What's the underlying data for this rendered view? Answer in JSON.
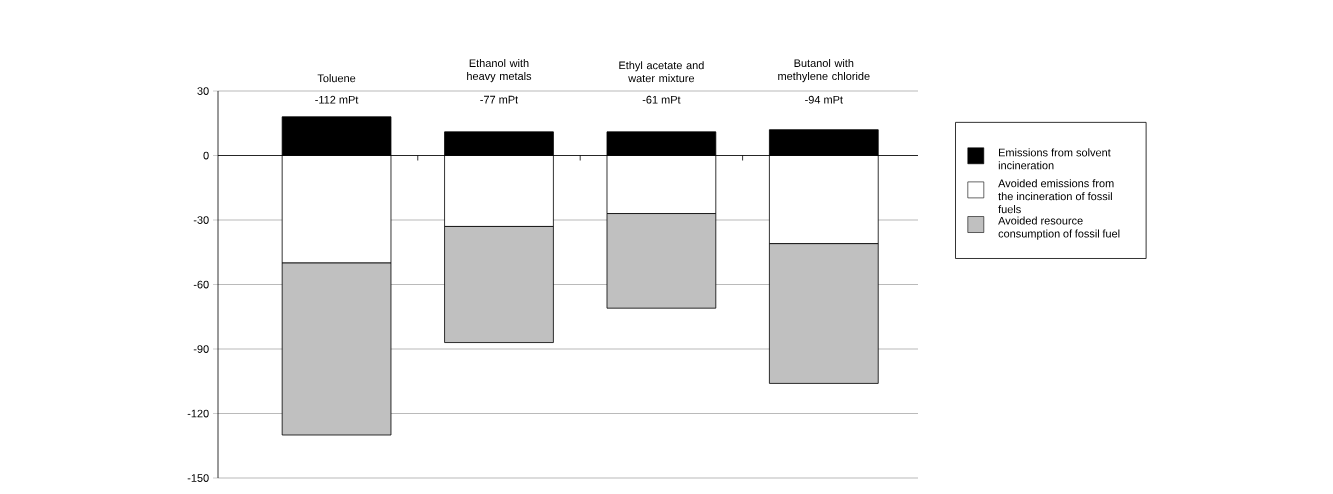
{
  "chart_data": {
    "type": "bar",
    "stacked": true,
    "categories": [
      "Toluene",
      "Ethanol with heavy metals",
      "Ethyl acetate and water mixture",
      "Butanol with methylene chloride"
    ],
    "series": [
      {
        "name": "Emissions from solvent incineration",
        "color": "#000000",
        "values": [
          18,
          11,
          11,
          12
        ]
      },
      {
        "name": "Avoided emissions from the incineration of fossil fuels",
        "color": "#ffffff",
        "values": [
          -50,
          -33,
          -27,
          -41
        ]
      },
      {
        "name": "Avoided resource consumption of fossil fuel",
        "color": "#c0c0c0",
        "values": [
          -80,
          -54,
          -44,
          -65
        ]
      }
    ],
    "totals": [
      "-112 mPt",
      "-77 mPt",
      "-61 mPt",
      "-94 mPt"
    ],
    "ylim": [
      -150,
      30
    ],
    "yticks": [
      -150,
      -120,
      -90,
      -60,
      -30,
      0,
      30
    ],
    "grid": "y",
    "legend": "right"
  }
}
